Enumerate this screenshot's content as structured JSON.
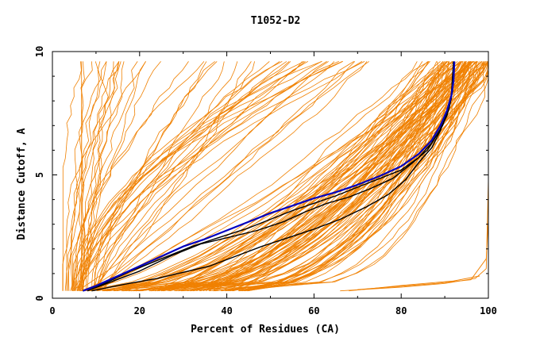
{
  "chart_data": {
    "type": "line",
    "title": "T1052-D2",
    "xlabel": "Percent of Residues (CA)",
    "ylabel": "Distance Cutoff, A",
    "xlim": [
      0,
      100
    ],
    "ylim": [
      0,
      10
    ],
    "x_ticks": [
      0,
      20,
      40,
      60,
      80,
      100
    ],
    "y_ticks": [
      0,
      5,
      10
    ],
    "x_tick_labels": [
      "0",
      "20",
      "40",
      "60",
      "80",
      "100"
    ],
    "y_tick_labels": [
      "0",
      "5",
      "10"
    ],
    "grid": false,
    "legend": "none",
    "colors": {
      "background_series": "#f08000",
      "reference": "#000000",
      "highlight": "#0000c0"
    },
    "background_count": 150,
    "background_seed": 1052,
    "highlight_series": {
      "color": "#0000c0",
      "points": [
        [
          7,
          0.3
        ],
        [
          10,
          0.5
        ],
        [
          15,
          0.9
        ],
        [
          20,
          1.3
        ],
        [
          25,
          1.7
        ],
        [
          30,
          2.1
        ],
        [
          35,
          2.4
        ],
        [
          40,
          2.75
        ],
        [
          45,
          3.1
        ],
        [
          50,
          3.45
        ],
        [
          55,
          3.75
        ],
        [
          60,
          4.05
        ],
        [
          65,
          4.3
        ],
        [
          70,
          4.6
        ],
        [
          75,
          4.95
        ],
        [
          80,
          5.35
        ],
        [
          84,
          5.85
        ],
        [
          87,
          6.4
        ],
        [
          89,
          7.0
        ],
        [
          90.5,
          7.6
        ],
        [
          91.5,
          8.2
        ],
        [
          92,
          8.8
        ],
        [
          92.2,
          9.6
        ]
      ]
    },
    "reference_series": [
      {
        "points": [
          [
            7,
            0.3
          ],
          [
            12,
            0.6
          ],
          [
            18,
            1.1
          ],
          [
            25,
            1.6
          ],
          [
            32,
            2.1
          ],
          [
            38,
            2.45
          ],
          [
            45,
            2.85
          ],
          [
            50,
            3.2
          ],
          [
            55,
            3.55
          ],
          [
            60,
            3.85
          ],
          [
            65,
            4.15
          ],
          [
            70,
            4.5
          ],
          [
            75,
            4.85
          ],
          [
            80,
            5.2
          ],
          [
            84,
            5.7
          ],
          [
            87,
            6.3
          ],
          [
            89.5,
            7.0
          ],
          [
            91,
            7.7
          ],
          [
            91.8,
            8.4
          ],
          [
            92.2,
            9.6
          ]
        ]
      },
      {
        "points": [
          [
            8,
            0.3
          ],
          [
            14,
            0.7
          ],
          [
            20,
            1.1
          ],
          [
            27,
            1.7
          ],
          [
            34,
            2.2
          ],
          [
            40,
            2.45
          ],
          [
            47,
            2.75
          ],
          [
            53,
            3.1
          ],
          [
            58,
            3.5
          ],
          [
            63,
            3.85
          ],
          [
            68,
            4.1
          ],
          [
            73,
            4.45
          ],
          [
            78,
            4.85
          ],
          [
            82,
            5.4
          ],
          [
            86,
            6.0
          ],
          [
            88.5,
            6.7
          ],
          [
            90.5,
            7.4
          ],
          [
            91.5,
            8.1
          ],
          [
            92,
            9.6
          ]
        ]
      },
      {
        "points": [
          [
            9,
            0.3
          ],
          [
            16,
            0.55
          ],
          [
            24,
            0.8
          ],
          [
            30,
            1.05
          ],
          [
            36,
            1.3
          ],
          [
            42,
            1.7
          ],
          [
            48,
            2.1
          ],
          [
            54,
            2.45
          ],
          [
            60,
            2.8
          ],
          [
            66,
            3.2
          ],
          [
            72,
            3.7
          ],
          [
            77,
            4.2
          ],
          [
            81,
            4.8
          ],
          [
            84,
            5.5
          ],
          [
            87,
            6.1
          ],
          [
            89,
            6.8
          ],
          [
            90.5,
            7.5
          ],
          [
            91.5,
            8.2
          ],
          [
            92,
            9.6
          ]
        ]
      }
    ]
  }
}
